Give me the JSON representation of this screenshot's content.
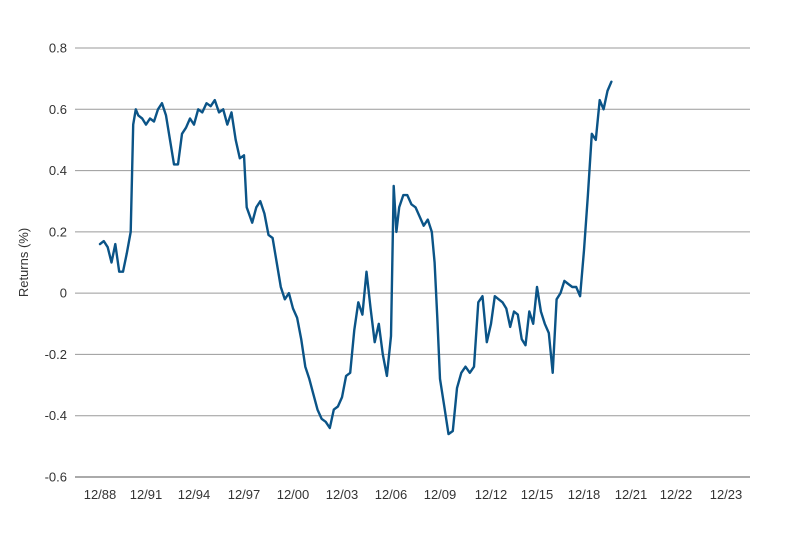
{
  "chart_data": {
    "type": "line",
    "ylabel": "Returns (%)",
    "xlabel": "",
    "ylim": [
      -0.6,
      0.8
    ],
    "yticks": [
      0.8,
      0.6,
      0.4,
      0.2,
      0,
      -0.2,
      -0.4,
      -0.6
    ],
    "ytick_labels": [
      "0.8",
      "0.6",
      "0.4",
      "0.2",
      "0",
      "-0.2",
      "-0.4",
      "-0.6"
    ],
    "xtick_labels": [
      "12/88",
      "12/91",
      "12/94",
      "12/97",
      "12/00",
      "12/03",
      "12/06",
      "12/09",
      "12/12",
      "12/15",
      "12/18",
      "12/21",
      "12/22",
      "12/23"
    ],
    "grid": true,
    "legend": "none",
    "series_color": "#0b5487",
    "series": [
      {
        "points": [
          [
            "12/88",
            0.16
          ],
          [
            "03/89",
            0.17
          ],
          [
            "06/89",
            0.15
          ],
          [
            "09/89",
            0.1
          ],
          [
            "12/89",
            0.16
          ],
          [
            "03/90",
            0.07
          ],
          [
            "06/90",
            0.07
          ],
          [
            "09/90",
            0.13
          ],
          [
            "12/90",
            0.2
          ],
          [
            "02/91",
            0.55
          ],
          [
            "04/91",
            0.6
          ],
          [
            "06/91",
            0.58
          ],
          [
            "09/91",
            0.57
          ],
          [
            "12/91",
            0.55
          ],
          [
            "03/92",
            0.57
          ],
          [
            "06/92",
            0.56
          ],
          [
            "09/92",
            0.6
          ],
          [
            "12/92",
            0.62
          ],
          [
            "03/93",
            0.58
          ],
          [
            "06/93",
            0.5
          ],
          [
            "09/93",
            0.42
          ],
          [
            "12/93",
            0.42
          ],
          [
            "03/94",
            0.52
          ],
          [
            "06/94",
            0.54
          ],
          [
            "09/94",
            0.57
          ],
          [
            "12/94",
            0.55
          ],
          [
            "03/95",
            0.6
          ],
          [
            "06/95",
            0.59
          ],
          [
            "09/95",
            0.62
          ],
          [
            "12/95",
            0.61
          ],
          [
            "03/96",
            0.63
          ],
          [
            "06/96",
            0.59
          ],
          [
            "09/96",
            0.6
          ],
          [
            "12/96",
            0.55
          ],
          [
            "03/97",
            0.59
          ],
          [
            "06/97",
            0.5
          ],
          [
            "09/97",
            0.44
          ],
          [
            "12/97",
            0.45
          ],
          [
            "02/98",
            0.28
          ],
          [
            "06/98",
            0.23
          ],
          [
            "09/98",
            0.28
          ],
          [
            "12/98",
            0.3
          ],
          [
            "03/99",
            0.26
          ],
          [
            "06/99",
            0.19
          ],
          [
            "09/99",
            0.18
          ],
          [
            "12/99",
            0.1
          ],
          [
            "03/00",
            0.02
          ],
          [
            "06/00",
            -0.02
          ],
          [
            "09/00",
            0.0
          ],
          [
            "12/00",
            -0.05
          ],
          [
            "03/01",
            -0.08
          ],
          [
            "06/01",
            -0.15
          ],
          [
            "09/01",
            -0.24
          ],
          [
            "12/01",
            -0.28
          ],
          [
            "03/02",
            -0.33
          ],
          [
            "06/02",
            -0.38
          ],
          [
            "09/02",
            -0.41
          ],
          [
            "12/02",
            -0.42
          ],
          [
            "03/03",
            -0.44
          ],
          [
            "06/03",
            -0.38
          ],
          [
            "09/03",
            -0.37
          ],
          [
            "12/03",
            -0.34
          ],
          [
            "03/04",
            -0.27
          ],
          [
            "06/04",
            -0.26
          ],
          [
            "09/04",
            -0.12
          ],
          [
            "12/04",
            -0.03
          ],
          [
            "03/05",
            -0.07
          ],
          [
            "06/05",
            0.07
          ],
          [
            "09/05",
            -0.05
          ],
          [
            "12/05",
            -0.16
          ],
          [
            "03/06",
            -0.1
          ],
          [
            "06/06",
            -0.2
          ],
          [
            "09/06",
            -0.27
          ],
          [
            "12/06",
            -0.14
          ],
          [
            "02/07",
            0.35
          ],
          [
            "04/07",
            0.2
          ],
          [
            "06/07",
            0.28
          ],
          [
            "09/07",
            0.32
          ],
          [
            "12/07",
            0.32
          ],
          [
            "03/08",
            0.29
          ],
          [
            "06/08",
            0.28
          ],
          [
            "09/08",
            0.25
          ],
          [
            "12/08",
            0.22
          ],
          [
            "03/09",
            0.24
          ],
          [
            "06/09",
            0.2
          ],
          [
            "08/09",
            0.1
          ],
          [
            "10/09",
            -0.08
          ],
          [
            "12/09",
            -0.28
          ],
          [
            "03/10",
            -0.37
          ],
          [
            "06/10",
            -0.46
          ],
          [
            "09/10",
            -0.45
          ],
          [
            "12/10",
            -0.31
          ],
          [
            "03/11",
            -0.26
          ],
          [
            "06/11",
            -0.24
          ],
          [
            "09/11",
            -0.26
          ],
          [
            "12/11",
            -0.24
          ],
          [
            "03/12",
            -0.03
          ],
          [
            "06/12",
            -0.01
          ],
          [
            "09/12",
            -0.16
          ],
          [
            "12/12",
            -0.1
          ],
          [
            "03/13",
            -0.01
          ],
          [
            "06/13",
            -0.02
          ],
          [
            "09/13",
            -0.03
          ],
          [
            "12/13",
            -0.05
          ],
          [
            "03/14",
            -0.11
          ],
          [
            "06/14",
            -0.06
          ],
          [
            "09/14",
            -0.07
          ],
          [
            "12/14",
            -0.15
          ],
          [
            "03/15",
            -0.17
          ],
          [
            "06/15",
            -0.06
          ],
          [
            "09/15",
            -0.1
          ],
          [
            "12/15",
            0.02
          ],
          [
            "03/16",
            -0.06
          ],
          [
            "06/16",
            -0.1
          ],
          [
            "09/16",
            -0.13
          ],
          [
            "12/16",
            -0.26
          ],
          [
            "03/17",
            -0.02
          ],
          [
            "06/17",
            0.0
          ],
          [
            "09/17",
            0.04
          ],
          [
            "12/17",
            0.03
          ],
          [
            "03/18",
            0.02
          ],
          [
            "06/18",
            0.02
          ],
          [
            "09/18",
            -0.01
          ],
          [
            "12/18",
            0.14
          ],
          [
            "03/19",
            0.32
          ],
          [
            "06/19",
            0.52
          ],
          [
            "09/19",
            0.5
          ],
          [
            "12/19",
            0.63
          ],
          [
            "03/20",
            0.6
          ],
          [
            "06/20",
            0.66
          ],
          [
            "09/20",
            0.69
          ]
        ]
      }
    ]
  }
}
